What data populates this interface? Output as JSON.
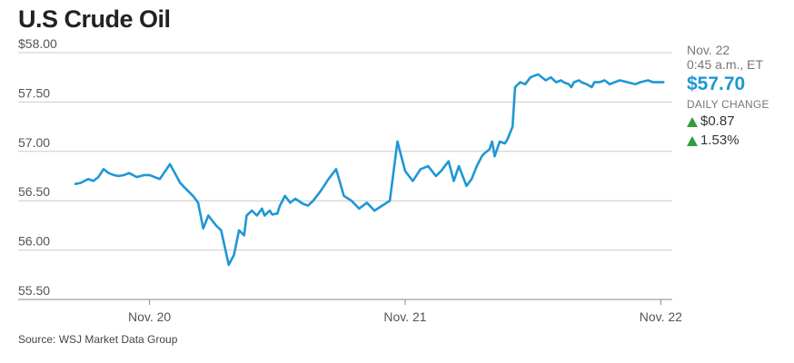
{
  "title": "U.S Crude Oil",
  "source": "Source: WSJ Market Data Group",
  "latest": {
    "date": "Nov. 22",
    "time": "0:45 a.m., ET",
    "price": "$57.70",
    "daily_change_label": "DAILY CHANGE",
    "change": "$0.87",
    "change_pct": "1.53%",
    "up_icon": "triangle-up-icon",
    "up_color": "#2e9e3f"
  },
  "colors": {
    "line": "#1f97d4",
    "grid": "#cccccc",
    "price": "#1f97d4"
  },
  "chart_data": {
    "type": "line",
    "title": "U.S Crude Oil",
    "xlabel": "",
    "ylabel": "",
    "ylim": [
      55.5,
      58.0
    ],
    "xlim": [
      -0.29,
      2.02
    ],
    "y_ticks": [
      {
        "value": 58.0,
        "label": "$58.00"
      },
      {
        "value": 57.5,
        "label": "57.50"
      },
      {
        "value": 57.0,
        "label": "57.00"
      },
      {
        "value": 56.5,
        "label": "56.50"
      },
      {
        "value": 56.0,
        "label": "56.00"
      },
      {
        "value": 55.5,
        "label": "55.50"
      }
    ],
    "x_ticks": [
      {
        "value": 0,
        "label": "Nov. 20"
      },
      {
        "value": 1,
        "label": "Nov. 21"
      },
      {
        "value": 2,
        "label": "Nov. 22"
      }
    ],
    "grid": true,
    "x": [
      -0.29,
      -0.27,
      -0.24,
      -0.22,
      -0.2,
      -0.18,
      -0.16,
      -0.14,
      -0.12,
      -0.1,
      -0.08,
      -0.05,
      -0.02,
      0.0,
      0.04,
      0.08,
      0.12,
      0.15,
      0.17,
      0.19,
      0.21,
      0.23,
      0.26,
      0.28,
      0.31,
      0.33,
      0.35,
      0.37,
      0.38,
      0.4,
      0.42,
      0.44,
      0.45,
      0.47,
      0.48,
      0.5,
      0.51,
      0.53,
      0.55,
      0.57,
      0.6,
      0.62,
      0.64,
      0.67,
      0.7,
      0.73,
      0.76,
      0.79,
      0.82,
      0.85,
      0.88,
      0.91,
      0.94,
      0.97,
      1.0,
      1.03,
      1.06,
      1.09,
      1.12,
      1.14,
      1.17,
      1.19,
      1.21,
      1.24,
      1.26,
      1.28,
      1.3,
      1.31,
      1.33,
      1.34,
      1.35,
      1.37,
      1.39,
      1.4,
      1.42,
      1.43,
      1.45,
      1.47,
      1.49,
      1.52,
      1.55,
      1.57,
      1.59,
      1.61,
      1.62,
      1.64,
      1.65,
      1.66,
      1.68,
      1.69,
      1.71,
      1.73,
      1.74,
      1.76,
      1.78,
      1.79,
      1.8,
      1.82,
      1.84,
      1.87,
      1.9,
      1.92,
      1.95,
      1.97,
      1.99,
      2.01
    ],
    "series": [
      {
        "name": "",
        "values": [
          56.67,
          56.68,
          56.72,
          56.7,
          56.74,
          56.82,
          56.78,
          56.76,
          56.75,
          56.76,
          56.78,
          56.74,
          56.76,
          56.76,
          56.72,
          56.87,
          56.68,
          56.6,
          56.55,
          56.48,
          56.22,
          56.35,
          56.25,
          56.2,
          55.85,
          55.95,
          56.2,
          56.15,
          56.35,
          56.4,
          56.35,
          56.42,
          56.35,
          56.4,
          56.36,
          56.37,
          56.45,
          56.55,
          56.48,
          56.52,
          56.47,
          56.45,
          56.5,
          56.6,
          56.72,
          56.82,
          56.55,
          56.5,
          56.42,
          56.48,
          56.4,
          56.45,
          56.5,
          57.1,
          56.8,
          56.7,
          56.82,
          56.85,
          56.75,
          56.8,
          56.9,
          56.7,
          56.85,
          56.65,
          56.72,
          56.85,
          56.95,
          56.98,
          57.02,
          57.1,
          56.95,
          57.1,
          57.08,
          57.12,
          57.25,
          57.65,
          57.7,
          57.68,
          57.75,
          57.78,
          57.72,
          57.75,
          57.7,
          57.72,
          57.7,
          57.68,
          57.65,
          57.7,
          57.72,
          57.7,
          57.68,
          57.65,
          57.7,
          57.7,
          57.72,
          57.7,
          57.68,
          57.7,
          57.72,
          57.7,
          57.68,
          57.7,
          57.72,
          57.7,
          57.7,
          57.7
        ]
      }
    ]
  }
}
